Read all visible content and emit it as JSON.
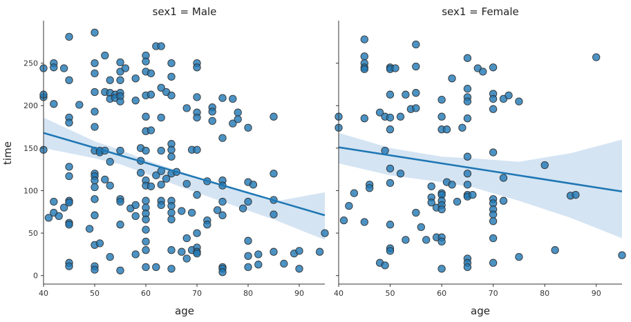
{
  "chart_data": [
    {
      "type": "scatter",
      "title": "sex1 = Male",
      "xlabel": "age",
      "ylabel": "time",
      "xlim": [
        40,
        95
      ],
      "ylim": [
        -10,
        300
      ],
      "xticks": [
        40,
        50,
        60,
        70,
        80,
        90
      ],
      "yticks": [
        0,
        50,
        100,
        150,
        200,
        250
      ],
      "grid": false,
      "colors": {
        "points": "#1f77b4",
        "point_edge": "#333333",
        "line": "#1f77b4",
        "band": "#c6dbef"
      },
      "points": [
        [
          40,
          244
        ],
        [
          40,
          210
        ],
        [
          40,
          213
        ],
        [
          40,
          148
        ],
        [
          41,
          68
        ],
        [
          42,
          250
        ],
        [
          42,
          245
        ],
        [
          42,
          202
        ],
        [
          42,
          87
        ],
        [
          42,
          74
        ],
        [
          43,
          70
        ],
        [
          44,
          244
        ],
        [
          44,
          80
        ],
        [
          45,
          281
        ],
        [
          45,
          230
        ],
        [
          45,
          186
        ],
        [
          45,
          180
        ],
        [
          45,
          128
        ],
        [
          45,
          117
        ],
        [
          45,
          88
        ],
        [
          45,
          86
        ],
        [
          45,
          62
        ],
        [
          45,
          60
        ],
        [
          45,
          15
        ],
        [
          45,
          11
        ],
        [
          47,
          201
        ],
        [
          49,
          55
        ],
        [
          50,
          286
        ],
        [
          50,
          250
        ],
        [
          50,
          238
        ],
        [
          50,
          216
        ],
        [
          50,
          193
        ],
        [
          50,
          175
        ],
        [
          50,
          147
        ],
        [
          50,
          120
        ],
        [
          50,
          117
        ],
        [
          50,
          112
        ],
        [
          50,
          104
        ],
        [
          50,
          90
        ],
        [
          50,
          71
        ],
        [
          50,
          36
        ],
        [
          50,
          11
        ],
        [
          50,
          7
        ],
        [
          51,
          147
        ],
        [
          51,
          145
        ],
        [
          51,
          38
        ],
        [
          52,
          259
        ],
        [
          52,
          216
        ],
        [
          52,
          147
        ],
        [
          52,
          113
        ],
        [
          53,
          230
        ],
        [
          53,
          215
        ],
        [
          53,
          208
        ],
        [
          53,
          134
        ],
        [
          53,
          106
        ],
        [
          53,
          22
        ],
        [
          54,
          213
        ],
        [
          54,
          209
        ],
        [
          55,
          251
        ],
        [
          55,
          240
        ],
        [
          55,
          230
        ],
        [
          55,
          215
        ],
        [
          55,
          211
        ],
        [
          55,
          205
        ],
        [
          55,
          147
        ],
        [
          55,
          90
        ],
        [
          55,
          87
        ],
        [
          55,
          60
        ],
        [
          55,
          6
        ],
        [
          56,
          244
        ],
        [
          57,
          79
        ],
        [
          58,
          232
        ],
        [
          58,
          206
        ],
        [
          58,
          83
        ],
        [
          58,
          70
        ],
        [
          58,
          25
        ],
        [
          59,
          150
        ],
        [
          59,
          135
        ],
        [
          59,
          121
        ],
        [
          60,
          259
        ],
        [
          60,
          252
        ],
        [
          60,
          240
        ],
        [
          60,
          212
        ],
        [
          60,
          187
        ],
        [
          60,
          170
        ],
        [
          60,
          147
        ],
        [
          60,
          112
        ],
        [
          60,
          106
        ],
        [
          60,
          88
        ],
        [
          60,
          80
        ],
        [
          60,
          73
        ],
        [
          60,
          66
        ],
        [
          60,
          54
        ],
        [
          60,
          40
        ],
        [
          60,
          30
        ],
        [
          60,
          10
        ],
        [
          61,
          238
        ],
        [
          61,
          213
        ],
        [
          61,
          171
        ],
        [
          61,
          105
        ],
        [
          62,
          270
        ],
        [
          62,
          118
        ],
        [
          62,
          10
        ],
        [
          63,
          270
        ],
        [
          63,
          221
        ],
        [
          63,
          186
        ],
        [
          63,
          147
        ],
        [
          63,
          123
        ],
        [
          63,
          107
        ],
        [
          63,
          88
        ],
        [
          63,
          83
        ],
        [
          64,
          216
        ],
        [
          64,
          114
        ],
        [
          65,
          250
        ],
        [
          65,
          234
        ],
        [
          65,
          212
        ],
        [
          65,
          155
        ],
        [
          65,
          148
        ],
        [
          65,
          140
        ],
        [
          65,
          120
        ],
        [
          65,
          88
        ],
        [
          65,
          82
        ],
        [
          65,
          74
        ],
        [
          65,
          66
        ],
        [
          65,
          30
        ],
        [
          65,
          8
        ],
        [
          66,
          122
        ],
        [
          67,
          76
        ],
        [
          67,
          28
        ],
        [
          68,
          197
        ],
        [
          68,
          108
        ],
        [
          68,
          44
        ],
        [
          68,
          20
        ],
        [
          69,
          148
        ],
        [
          69,
          74
        ],
        [
          69,
          30
        ],
        [
          70,
          250
        ],
        [
          70,
          245
        ],
        [
          70,
          210
        ],
        [
          70,
          192
        ],
        [
          70,
          186
        ],
        [
          70,
          148
        ],
        [
          70,
          95
        ],
        [
          70,
          50
        ],
        [
          70,
          33
        ],
        [
          70,
          28
        ],
        [
          70,
          26
        ],
        [
          72,
          111
        ],
        [
          72,
          65
        ],
        [
          72,
          60
        ],
        [
          73,
          198
        ],
        [
          73,
          193
        ],
        [
          73,
          182
        ],
        [
          74,
          77
        ],
        [
          75,
          209
        ],
        [
          75,
          162
        ],
        [
          75,
          112
        ],
        [
          75,
          106
        ],
        [
          75,
          87
        ],
        [
          75,
          71
        ],
        [
          75,
          10
        ],
        [
          75,
          8
        ],
        [
          75,
          4
        ],
        [
          77,
          208
        ],
        [
          77,
          179
        ],
        [
          78,
          192
        ],
        [
          78,
          184
        ],
        [
          79,
          79
        ],
        [
          80,
          174
        ],
        [
          80,
          110
        ],
        [
          80,
          87
        ],
        [
          80,
          41
        ],
        [
          80,
          23
        ],
        [
          80,
          10
        ],
        [
          81,
          107
        ],
        [
          82,
          25
        ],
        [
          82,
          13
        ],
        [
          85,
          187
        ],
        [
          85,
          120
        ],
        [
          85,
          89
        ],
        [
          85,
          72
        ],
        [
          85,
          28
        ],
        [
          87,
          14
        ],
        [
          89,
          26
        ],
        [
          90,
          29
        ],
        [
          90,
          8
        ],
        [
          94,
          28
        ],
        [
          95,
          50
        ]
      ],
      "regression": {
        "x": [
          40,
          95
        ],
        "y": [
          168,
          71
        ]
      },
      "ci_lower": [
        [
          40,
          150
        ],
        [
          50,
          138
        ],
        [
          55,
          131
        ],
        [
          60,
          120
        ],
        [
          67,
          104
        ],
        [
          75,
          87
        ],
        [
          85,
          66
        ],
        [
          95,
          42
        ]
      ],
      "ci_upper": [
        [
          40,
          186
        ],
        [
          50,
          158
        ],
        [
          55,
          148
        ],
        [
          60,
          136
        ],
        [
          67,
          122
        ],
        [
          75,
          106
        ],
        [
          85,
          87
        ],
        [
          95,
          98
        ]
      ]
    },
    {
      "type": "scatter",
      "title": "sex1 = Female",
      "xlabel": "age",
      "ylabel": "",
      "xlim": [
        40,
        95
      ],
      "ylim": [
        -10,
        300
      ],
      "xticks": [
        40,
        50,
        60,
        70,
        80,
        90
      ],
      "yticks": [
        0,
        50,
        100,
        150,
        200,
        250
      ],
      "grid": false,
      "colors": {
        "points": "#1f77b4",
        "point_edge": "#333333",
        "line": "#1f77b4",
        "band": "#c6dbef"
      },
      "points": [
        [
          40,
          187
        ],
        [
          40,
          174
        ],
        [
          41,
          65
        ],
        [
          42,
          82
        ],
        [
          43,
          97
        ],
        [
          45,
          278
        ],
        [
          45,
          258
        ],
        [
          45,
          250
        ],
        [
          45,
          245
        ],
        [
          45,
          243
        ],
        [
          45,
          185
        ],
        [
          45,
          63
        ],
        [
          46,
          107
        ],
        [
          46,
          103
        ],
        [
          48,
          192
        ],
        [
          48,
          15
        ],
        [
          49,
          187
        ],
        [
          49,
          147
        ],
        [
          49,
          12
        ],
        [
          50,
          245
        ],
        [
          50,
          243
        ],
        [
          50,
          213
        ],
        [
          50,
          186
        ],
        [
          50,
          172
        ],
        [
          50,
          126
        ],
        [
          50,
          109
        ],
        [
          50,
          60
        ],
        [
          50,
          32
        ],
        [
          50,
          29
        ],
        [
          51,
          244
        ],
        [
          52,
          187
        ],
        [
          52,
          120
        ],
        [
          53,
          213
        ],
        [
          53,
          42
        ],
        [
          54,
          196
        ],
        [
          55,
          272
        ],
        [
          55,
          246
        ],
        [
          55,
          215
        ],
        [
          55,
          197
        ],
        [
          55,
          74
        ],
        [
          56,
          57
        ],
        [
          57,
          42
        ],
        [
          58,
          105
        ],
        [
          58,
          92
        ],
        [
          58,
          86
        ],
        [
          59,
          80
        ],
        [
          59,
          45
        ],
        [
          60,
          207
        ],
        [
          60,
          187
        ],
        [
          60,
          172
        ],
        [
          60,
          97
        ],
        [
          60,
          95
        ],
        [
          60,
          88
        ],
        [
          60,
          83
        ],
        [
          60,
          78
        ],
        [
          60,
          45
        ],
        [
          60,
          40
        ],
        [
          60,
          8
        ],
        [
          61,
          110
        ],
        [
          61,
          172
        ],
        [
          62,
          232
        ],
        [
          62,
          107
        ],
        [
          63,
          87
        ],
        [
          64,
          174
        ],
        [
          65,
          256
        ],
        [
          65,
          220
        ],
        [
          65,
          210
        ],
        [
          65,
          205
        ],
        [
          65,
          185
        ],
        [
          65,
          140
        ],
        [
          65,
          120
        ],
        [
          65,
          107
        ],
        [
          65,
          95
        ],
        [
          65,
          93
        ],
        [
          65,
          20
        ],
        [
          65,
          15
        ],
        [
          65,
          10
        ],
        [
          66,
          95
        ],
        [
          67,
          244
        ],
        [
          68,
          240
        ],
        [
          70,
          245
        ],
        [
          70,
          214
        ],
        [
          70,
          208
        ],
        [
          70,
          196
        ],
        [
          70,
          145
        ],
        [
          70,
          90
        ],
        [
          70,
          85
        ],
        [
          70,
          78
        ],
        [
          70,
          72
        ],
        [
          70,
          64
        ],
        [
          70,
          44
        ],
        [
          70,
          15
        ],
        [
          72,
          208
        ],
        [
          72,
          115
        ],
        [
          72,
          88
        ],
        [
          73,
          212
        ],
        [
          75,
          205
        ],
        [
          75,
          22
        ],
        [
          80,
          130
        ],
        [
          82,
          30
        ],
        [
          85,
          94
        ],
        [
          86,
          95
        ],
        [
          90,
          257
        ],
        [
          95,
          24
        ]
      ],
      "regression": {
        "x": [
          40,
          95
        ],
        "y": [
          151,
          99
        ]
      },
      "ci_lower": [
        [
          40,
          132
        ],
        [
          50,
          118
        ],
        [
          60,
          110
        ],
        [
          66,
          104
        ],
        [
          75,
          88
        ],
        [
          85,
          68
        ],
        [
          95,
          44
        ]
      ],
      "ci_upper": [
        [
          40,
          168
        ],
        [
          50,
          150
        ],
        [
          60,
          140
        ],
        [
          66,
          138
        ],
        [
          75,
          134
        ],
        [
          85,
          144
        ],
        [
          95,
          160
        ]
      ]
    }
  ]
}
